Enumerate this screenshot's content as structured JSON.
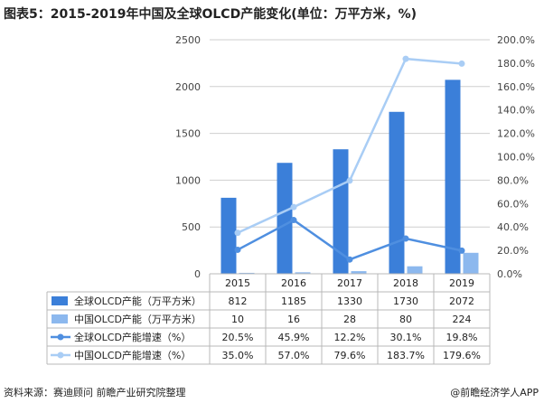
{
  "title": "图表5：2015-2019年中国及全球OLCD产能变化(单位：万平方米，%)",
  "footer": {
    "source": "资料来源：赛迪顾问 前瞻产业研究院整理",
    "brand": "@前瞻经济学人APP"
  },
  "colors": {
    "global_capacity": "#3b7fd9",
    "china_capacity": "#8cb8ee",
    "global_growth": "#4f8fe0",
    "china_growth": "#a9cdf5",
    "grid": "#cfcfcf",
    "table_border": "#b8b8b8"
  },
  "chart_data": {
    "type": "bar",
    "categories": [
      "2015",
      "2016",
      "2017",
      "2018",
      "2019"
    ],
    "series": [
      {
        "name": "全球OLCD产能（万平方米）",
        "type": "bar",
        "axis": "left",
        "values": [
          812,
          1185,
          1330,
          1730,
          2072
        ],
        "labels": [
          "812",
          "1185",
          "1330",
          "1730",
          "2072"
        ]
      },
      {
        "name": "中国OLCD产能（万平方米）",
        "type": "bar",
        "axis": "left",
        "values": [
          10,
          16,
          28,
          80,
          224
        ],
        "labels": [
          "10",
          "16",
          "28",
          "80",
          "224"
        ]
      },
      {
        "name": "全球OLCD产能增速（%）",
        "type": "line",
        "axis": "right",
        "values": [
          20.5,
          45.9,
          12.2,
          30.1,
          19.8
        ],
        "labels": [
          "20.5%",
          "45.9%",
          "12.2%",
          "30.1%",
          "19.8%"
        ]
      },
      {
        "name": "中国OLCD产能增速（%）",
        "type": "line",
        "axis": "right",
        "values": [
          35.0,
          57.0,
          79.6,
          183.7,
          179.6
        ],
        "labels": [
          "35.0%",
          "57.0%",
          "79.6%",
          "183.7%",
          "179.6%"
        ]
      }
    ],
    "left_axis": {
      "ylim": [
        0,
        2500
      ],
      "ticks": [
        "0",
        "500",
        "1000",
        "1500",
        "2000",
        "2500"
      ]
    },
    "right_axis": {
      "ylim": [
        0,
        200
      ],
      "ticks": [
        "0.0%",
        "20.0%",
        "40.0%",
        "60.0%",
        "80.0%",
        "100.0%",
        "120.0%",
        "140.0%",
        "160.0%",
        "180.0%",
        "200.0%"
      ]
    },
    "grid": true,
    "legend": "data-table-below"
  }
}
